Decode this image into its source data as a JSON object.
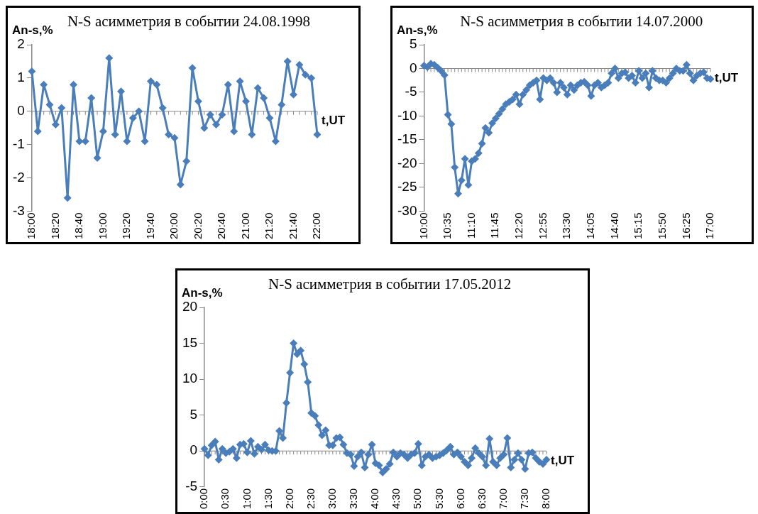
{
  "chart_data": [
    {
      "type": "line",
      "title": "N-S асимметрия в событии 24.08.1998",
      "xlabel": "t,UT",
      "ylabel": "An-s,%",
      "marker": "diamond",
      "line_style": "solid",
      "ylim": [
        -3,
        2
      ],
      "yticks": [
        -3,
        -2,
        -1,
        0,
        1,
        2
      ],
      "categories": [
        "18:00",
        null,
        null,
        null,
        "18:20",
        null,
        null,
        null,
        "18:40",
        null,
        null,
        null,
        "19:00",
        null,
        null,
        null,
        "19:20",
        null,
        null,
        null,
        "19:40",
        null,
        null,
        null,
        "20:00",
        null,
        null,
        null,
        "20:20",
        null,
        null,
        null,
        "20:40",
        null,
        null,
        null,
        "21:00",
        null,
        null,
        null,
        "21:20",
        null,
        null,
        null,
        "21:40",
        null,
        null,
        null,
        "22:00"
      ],
      "series": [
        {
          "color": "#4a7ebb",
          "values": [
            1.2,
            -0.6,
            0.8,
            0.2,
            -0.4,
            0.1,
            -2.6,
            0.8,
            -0.9,
            -0.9,
            0.4,
            -1.4,
            -0.6,
            1.6,
            -0.7,
            0.6,
            -0.9,
            -0.2,
            0.0,
            -0.9,
            0.9,
            0.8,
            0.1,
            -0.7,
            -0.8,
            -2.2,
            -1.5,
            1.3,
            0.3,
            -0.5,
            -0.1,
            -0.4,
            -0.1,
            0.8,
            -0.6,
            0.9,
            0.3,
            -0.7,
            0.7,
            0.4,
            -0.2,
            -0.9,
            0.2,
            1.5,
            0.5,
            1.4,
            1.1,
            1.0,
            -0.7
          ]
        }
      ]
    },
    {
      "type": "line",
      "title": "N-S асимметрия в событии 14.07.2000",
      "xlabel": "t,UT",
      "ylabel": "An-s,%",
      "marker": "diamond",
      "line_style": "solid",
      "ylim": [
        -30,
        5
      ],
      "yticks": [
        -30,
        -25,
        -20,
        -15,
        -10,
        -5,
        0,
        5
      ],
      "categories": [
        "10:00",
        null,
        null,
        null,
        null,
        null,
        null,
        "10:35",
        null,
        null,
        null,
        null,
        null,
        null,
        "11:10",
        null,
        null,
        null,
        null,
        null,
        null,
        "11:45",
        null,
        null,
        null,
        null,
        null,
        null,
        "12:20",
        null,
        null,
        null,
        null,
        null,
        null,
        "12:55",
        null,
        null,
        null,
        null,
        null,
        null,
        "13:30",
        null,
        null,
        null,
        null,
        null,
        null,
        "14:05",
        null,
        null,
        null,
        null,
        null,
        null,
        "14:40",
        null,
        null,
        null,
        null,
        null,
        null,
        "15:15",
        null,
        null,
        null,
        null,
        null,
        null,
        "15:50",
        null,
        null,
        null,
        null,
        null,
        null,
        "16:25",
        null,
        null,
        null,
        null,
        null,
        null,
        "17:00"
      ],
      "series": [
        {
          "color": "#4a7ebb",
          "values": [
            0.6,
            0.3,
            1.0,
            0.8,
            0.2,
            -0.5,
            -1.4,
            -9.7,
            -11.7,
            -20.8,
            -26.3,
            -23.5,
            -19,
            -24.5,
            -19.5,
            -19,
            -17.8,
            -15.8,
            -12.5,
            -13.5,
            -11.5,
            -10.5,
            -9.5,
            -8.5,
            -7.5,
            -7,
            -6.5,
            -5.5,
            -7.5,
            -5.5,
            -4.5,
            -3.5,
            -3,
            -2.5,
            -6.5,
            -2,
            -2.5,
            -2,
            -3,
            -5,
            -3,
            -4,
            -5.5,
            -3.5,
            -4.5,
            -3.5,
            -3,
            -2.8,
            -3.5,
            -5.8,
            -3.5,
            -3,
            -4,
            -3.5,
            -3,
            -1,
            0,
            -2,
            -1,
            -0.8,
            -2,
            -1.5,
            -3,
            -0.5,
            -2,
            -1,
            -4,
            -0.5,
            -2,
            -2.5,
            -2.5,
            -3,
            -2,
            -1,
            0,
            -0.5,
            -0.5,
            0.8,
            -1,
            -2.5,
            -1.5,
            -1,
            -0.8,
            -2,
            -2.2
          ]
        }
      ]
    },
    {
      "type": "line",
      "title": "N-S асимметрия в событии 17.05.2012",
      "xlabel": "t,UT",
      "ylabel": "An-s,%",
      "marker": "diamond",
      "line_style": "solid",
      "ylim": [
        -5,
        20
      ],
      "yticks": [
        -5,
        0,
        5,
        10,
        15,
        20
      ],
      "categories": [
        "0:00",
        null,
        null,
        null,
        null,
        null,
        "0:30",
        null,
        null,
        null,
        null,
        null,
        "1:00",
        null,
        null,
        null,
        null,
        null,
        "1:30",
        null,
        null,
        null,
        null,
        null,
        "2:00",
        null,
        null,
        null,
        null,
        null,
        "2:30",
        null,
        null,
        null,
        null,
        null,
        "3:00",
        null,
        null,
        null,
        null,
        null,
        "3:30",
        null,
        null,
        null,
        null,
        null,
        "4:00",
        null,
        null,
        null,
        null,
        null,
        "4:30",
        null,
        null,
        null,
        null,
        null,
        "5:00",
        null,
        null,
        null,
        null,
        null,
        "5:30",
        null,
        null,
        null,
        null,
        null,
        "6:00",
        null,
        null,
        null,
        null,
        null,
        "6:30",
        null,
        null,
        null,
        null,
        null,
        "7:00",
        null,
        null,
        null,
        null,
        null,
        "7:30",
        null,
        null,
        null,
        null,
        null,
        "8:00"
      ],
      "series": [
        {
          "color": "#4a7ebb",
          "values": [
            0.3,
            -0.6,
            0.8,
            1.3,
            -1.2,
            0.3,
            -0.3,
            -0.1,
            0.3,
            -1.0,
            0.9,
            1.0,
            -0.2,
            1.4,
            -0.4,
            0.6,
            0.2,
            0.9,
            0.1,
            0.0,
            0.0,
            2.8,
            1.8,
            6.7,
            10.9,
            15.0,
            13.5,
            14.0,
            12.1,
            9.6,
            5.3,
            4.9,
            3.6,
            2.2,
            2.9,
            0.8,
            0.8,
            1.8,
            1.9,
            0.9,
            -0.3,
            -0.5,
            -2.1,
            -0.8,
            -0.2,
            -2.3,
            -0.5,
            0.9,
            -1.7,
            -2.0,
            -3.0,
            -2.5,
            -1.8,
            -0.2,
            -0.8,
            -0.3,
            -0.5,
            -1.0,
            -0.5,
            -0.3,
            1.0,
            -2.0,
            -0.8,
            -0.5,
            -1.0,
            -0.8,
            -0.6,
            -0.3,
            0.1,
            0.6,
            -0.5,
            -0.2,
            -0.8,
            -1.5,
            -2.0,
            -1.0,
            0.4,
            -0.3,
            -0.8,
            -2.0,
            1.7,
            -1.5,
            -2.0,
            -1.0,
            -0.5,
            1.8,
            -2.3,
            -1.2,
            -0.3,
            -1.2,
            -2.5,
            -0.3,
            -0.2,
            -1.0,
            -1.5,
            -1.8,
            -1.2
          ]
        }
      ]
    }
  ]
}
